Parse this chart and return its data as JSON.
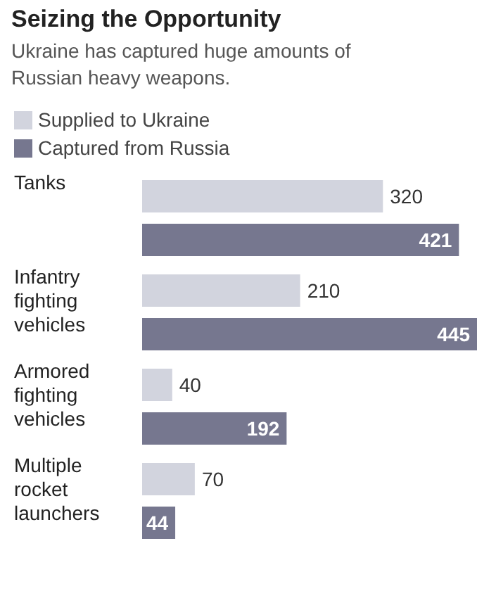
{
  "chart_data": {
    "type": "bar",
    "orientation": "horizontal",
    "title": "Seizing the Opportunity",
    "subtitle": "Ukraine has captured huge amounts of Russian heavy weapons.",
    "categories": [
      "Tanks",
      "Infantry fighting vehicles",
      "Armored fighting vehicles",
      "Multiple rocket launchers"
    ],
    "series": [
      {
        "name": "Supplied to Ukraine",
        "color": "#d2d4de",
        "values": [
          320,
          210,
          40,
          70
        ]
      },
      {
        "name": "Captured from Russia",
        "color": "#76778f",
        "values": [
          421,
          445,
          192,
          44
        ]
      }
    ],
    "data_labels": true,
    "legend": "top left"
  }
}
